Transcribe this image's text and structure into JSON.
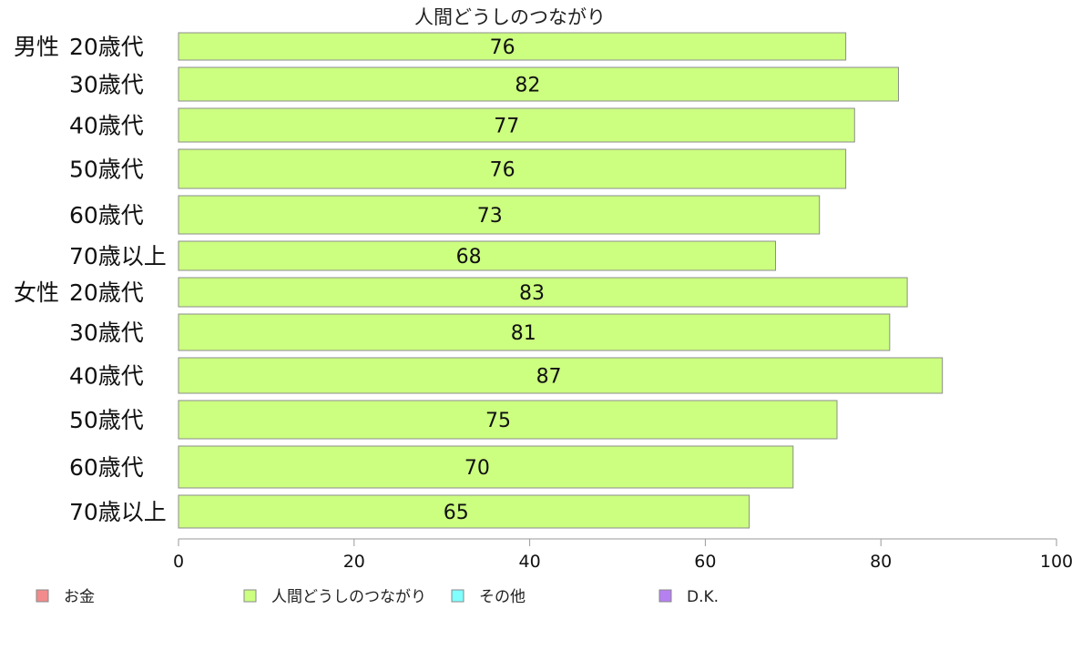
{
  "chart_data": {
    "type": "bar",
    "orientation": "horizontal",
    "title": "人間どうしのつながり",
    "groups": [
      {
        "name": "男性",
        "categories": [
          "20歳代",
          "30歳代",
          "40歳代",
          "50歳代",
          "60歳代",
          "70歳以上"
        ],
        "values": [
          76,
          82,
          77,
          76,
          73,
          68
        ]
      },
      {
        "name": "女性",
        "categories": [
          "20歳代",
          "30歳代",
          "40歳代",
          "50歳代",
          "60歳代",
          "70歳以上"
        ],
        "values": [
          83,
          81,
          87,
          75,
          70,
          65
        ]
      }
    ],
    "xlim": [
      0,
      100
    ],
    "xticks": [
      0,
      20,
      40,
      60,
      80,
      100
    ],
    "grid": false,
    "legend_position": "bottom",
    "legend": [
      {
        "label": "お金",
        "color": "#f28b8b"
      },
      {
        "label": "人間どうしのつながり",
        "color": "#ccff80"
      },
      {
        "label": "その他",
        "color": "#80ffff"
      },
      {
        "label": "D.K.",
        "color": "#b580f0"
      }
    ],
    "bar_color": "#ccff80"
  }
}
